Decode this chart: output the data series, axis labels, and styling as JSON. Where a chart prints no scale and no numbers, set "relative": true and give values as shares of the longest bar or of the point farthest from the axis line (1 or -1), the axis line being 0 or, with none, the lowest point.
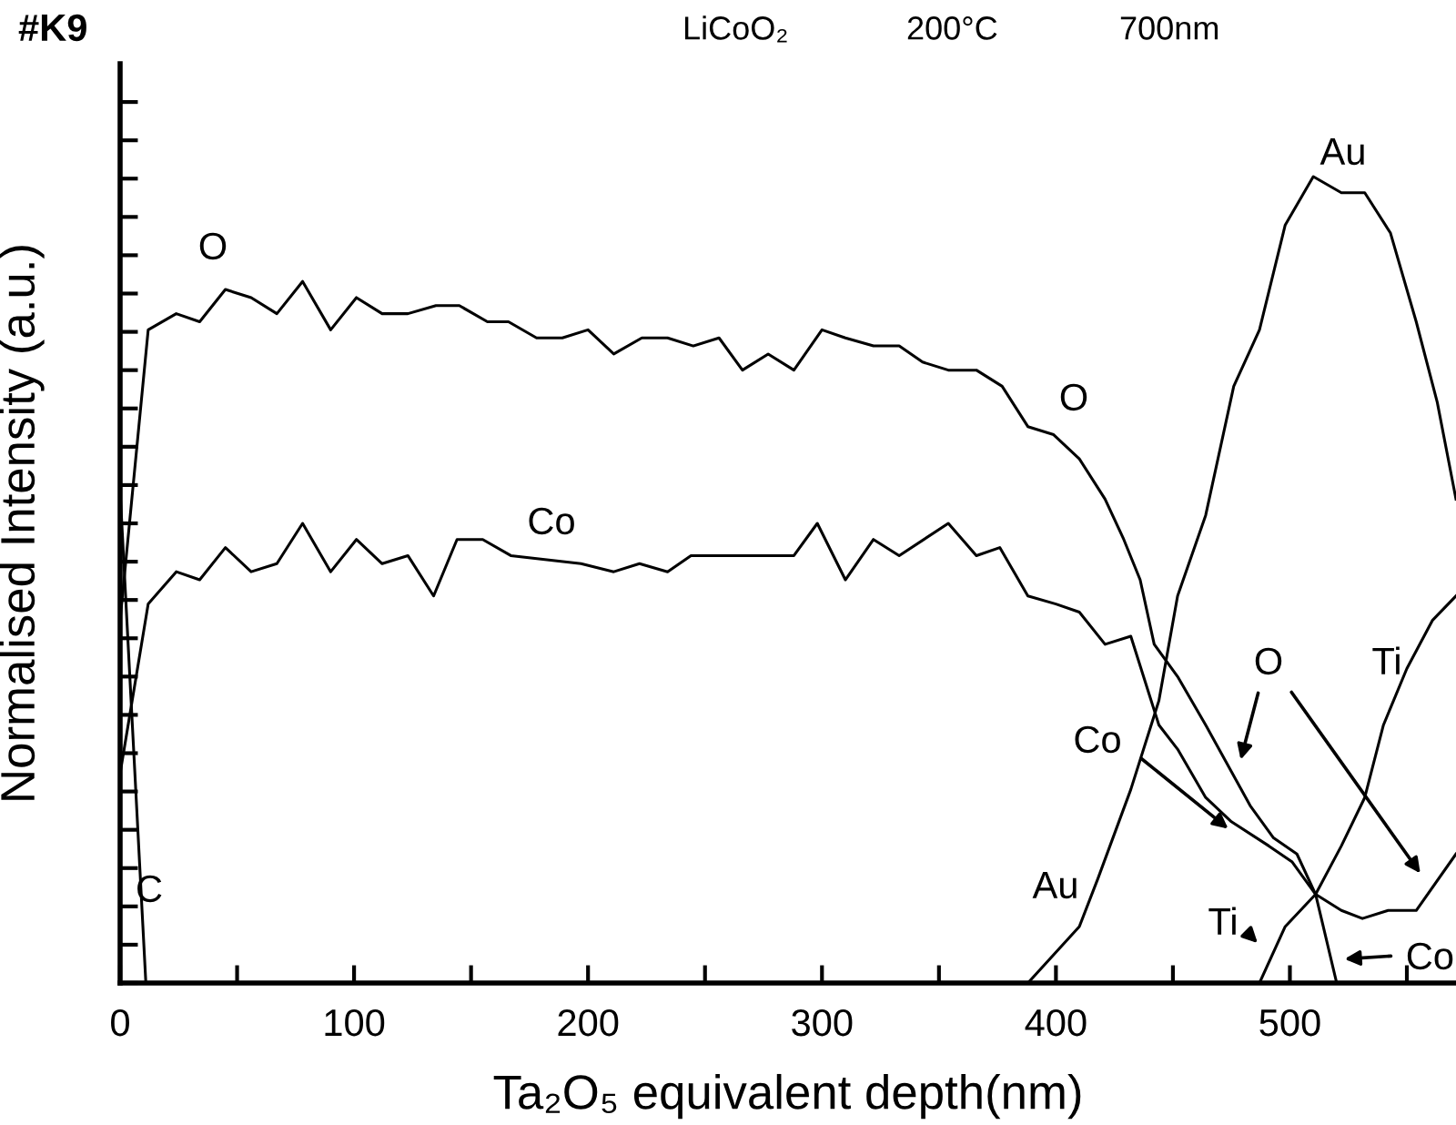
{
  "chart_data": {
    "type": "line",
    "title": "#K9",
    "xlabel": "Ta₂O₅ equivalent depth(nm)",
    "ylabel": "Normalised Intensity (a.u.)",
    "relative": true,
    "xlim": [
      0,
      571
    ],
    "xticks": [
      0,
      {
        "value": 50,
        "label": null
      },
      100,
      {
        "value": 150,
        "label": null
      },
      200,
      {
        "value": 250,
        "label": null
      },
      300,
      {
        "value": 350,
        "label": null
      },
      400,
      {
        "value": 450,
        "label": null
      },
      500,
      {
        "value": 550,
        "label": null
      }
    ],
    "grid": false,
    "legend": false,
    "marker": "none",
    "line_style": "solid",
    "series": [
      {
        "color": "#000000",
        "x": [
          0,
          12,
          24,
          34,
          45,
          56,
          67,
          78,
          90,
          101,
          112,
          123,
          135,
          145,
          157,
          166,
          178,
          189,
          200,
          211,
          223,
          234,
          245,
          256,
          266,
          277,
          288,
          300,
          310,
          322,
          333,
          343,
          354,
          366,
          377,
          388,
          399,
          410,
          421,
          429,
          436,
          442,
          452,
          464,
          483,
          493,
          503,
          511,
          522,
          531,
          542,
          554,
          571
        ],
        "values": [
          0.45,
          0.81,
          0.83,
          0.82,
          0.86,
          0.85,
          0.83,
          0.87,
          0.81,
          0.85,
          0.83,
          0.83,
          0.84,
          0.84,
          0.82,
          0.82,
          0.8,
          0.8,
          0.81,
          0.78,
          0.8,
          0.8,
          0.79,
          0.8,
          0.76,
          0.78,
          0.76,
          0.81,
          0.8,
          0.79,
          0.79,
          0.77,
          0.76,
          0.76,
          0.74,
          0.69,
          0.68,
          0.65,
          0.6,
          0.55,
          0.5,
          0.42,
          0.38,
          0.32,
          0.22,
          0.18,
          0.16,
          0.11,
          0.09,
          0.08,
          0.09,
          0.09,
          0.16
        ]
      },
      {
        "color": "#000000",
        "x": [
          0,
          12,
          24,
          34,
          45,
          56,
          67,
          78,
          90,
          101,
          112,
          123,
          134,
          144,
          155,
          167,
          197,
          211,
          222,
          234,
          244,
          256,
          288,
          298,
          310,
          322,
          333,
          354,
          366,
          376,
          388,
          400,
          410,
          421,
          432,
          444,
          452,
          464,
          475,
          491,
          501,
          511,
          520
        ],
        "values": [
          0.26,
          0.47,
          0.51,
          0.5,
          0.54,
          0.51,
          0.52,
          0.57,
          0.51,
          0.55,
          0.52,
          0.53,
          0.48,
          0.55,
          0.55,
          0.53,
          0.52,
          0.51,
          0.52,
          0.51,
          0.53,
          0.53,
          0.53,
          0.57,
          0.5,
          0.55,
          0.53,
          0.57,
          0.53,
          0.54,
          0.48,
          0.47,
          0.46,
          0.42,
          0.43,
          0.32,
          0.29,
          0.23,
          0.2,
          0.17,
          0.15,
          0.11,
          0.0
        ]
      },
      {
        "color": "#000000",
        "x": [
          388,
          410,
          418,
          432,
          444,
          452,
          464,
          476,
          487,
          498,
          510,
          522,
          532,
          543,
          554,
          563,
          571
        ],
        "values": [
          0.0,
          0.07,
          0.13,
          0.24,
          0.35,
          0.48,
          0.58,
          0.74,
          0.81,
          0.94,
          1.0,
          0.98,
          0.98,
          0.93,
          0.82,
          0.72,
          0.6
        ]
      },
      {
        "color": "#000000",
        "x": [
          487,
          498,
          511,
          522,
          532,
          540,
          550,
          561,
          571
        ],
        "values": [
          0.0,
          0.07,
          0.11,
          0.17,
          0.23,
          0.32,
          0.39,
          0.45,
          0.48
        ]
      },
      {
        "color": "#000000",
        "x": [
          0,
          11
        ],
        "values": [
          0.61,
          0.0
        ]
      }
    ],
    "annotations": [
      "LiCoO₂",
      "200°C",
      "700nm",
      "O",
      "O",
      "Co",
      "Au",
      "C",
      "Au",
      "Ti",
      "O",
      "Co",
      "Ti",
      "Co"
    ]
  }
}
